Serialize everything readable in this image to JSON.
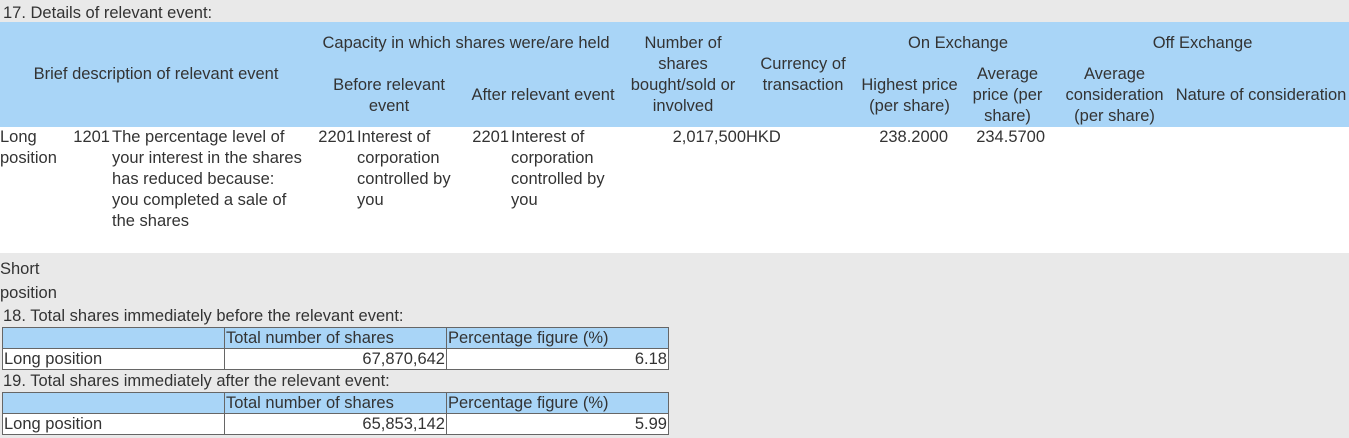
{
  "section17": {
    "title": "17. Details of relevant event:",
    "headers": {
      "brief_description": "Brief description of relevant event",
      "capacity": "Capacity in which shares were/are held",
      "before_event": "Before relevant event",
      "after_event": "After relevant event",
      "number_of_shares": "Number of shares bought/sold or involved",
      "currency": "Currency of transaction",
      "on_exchange": "On Exchange",
      "highest_price": "Highest price (per share)",
      "average_price": "Average price (per share)",
      "off_exchange": "Off Exchange",
      "average_consideration": "Average consideration (per share)",
      "nature_of_consideration": "Nature of consideration"
    },
    "long_row": {
      "position": "Long position",
      "event_code": "1201",
      "event_description": "The percentage level of your interest in the shares has reduced because:",
      "event_description_2": "you completed a sale of the shares",
      "before_code": "2201",
      "before_capacity": "Interest of corporation controlled by you",
      "after_code": "2201",
      "after_capacity": "Interest of corporation controlled by you",
      "number_of_shares": "2,017,500",
      "currency": "HKD",
      "highest_price": "238.2000",
      "average_price": "234.5700",
      "average_consideration": "",
      "nature_of_consideration": ""
    },
    "short_row": {
      "position": "Short position"
    }
  },
  "section18": {
    "title": "18. Total shares immediately before the relevant event:",
    "col_total": "Total number of shares",
    "col_pct": "Percentage figure (%)",
    "row_label": "Long position",
    "total": "67,870,642",
    "pct": "6.18"
  },
  "section19": {
    "title": "19. Total shares immediately after the relevant event:",
    "col_total": "Total number of shares",
    "col_pct": "Percentage figure (%)",
    "row_label": "Long position",
    "total": "65,853,142",
    "pct": "5.99"
  }
}
